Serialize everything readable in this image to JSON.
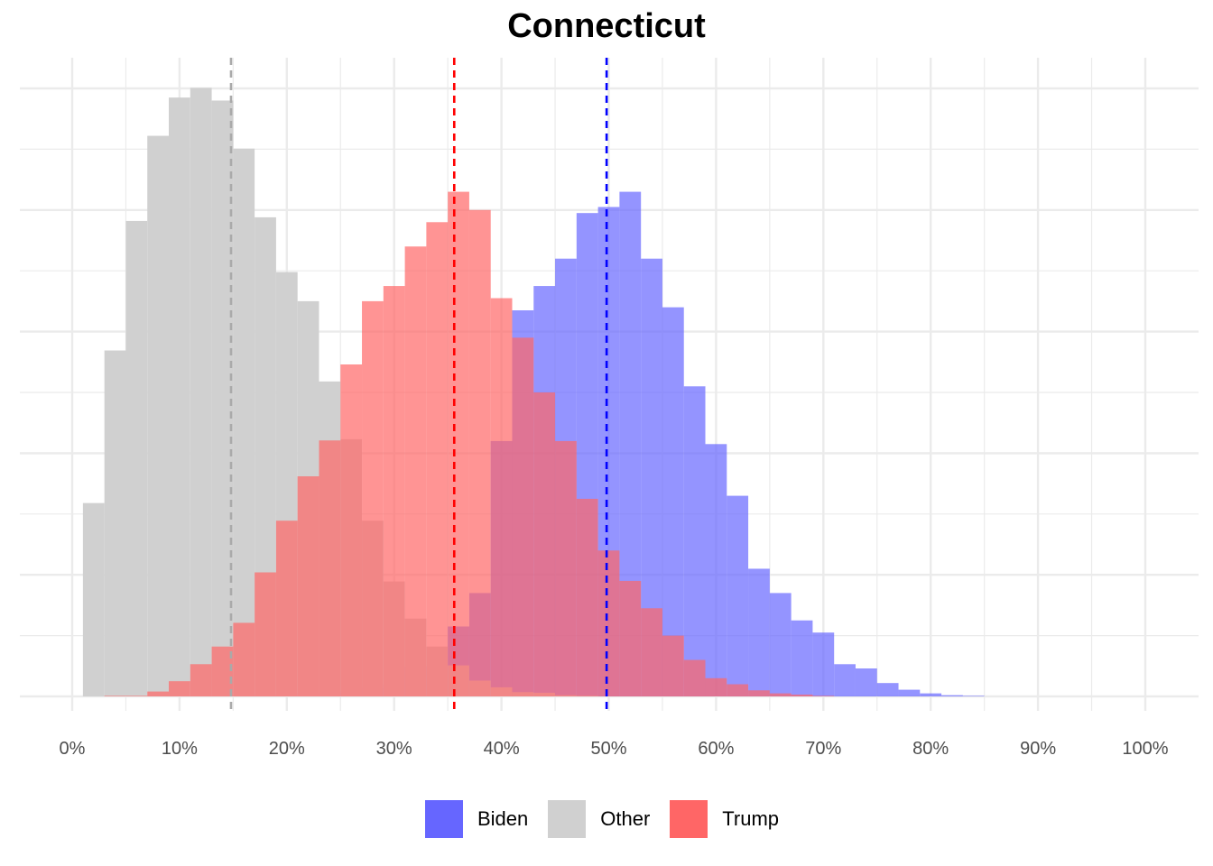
{
  "chart_data": {
    "type": "histogram",
    "title": "Connecticut",
    "xlabel": "",
    "ylabel": "",
    "x_tick_labels": [
      "0%",
      "10%",
      "20%",
      "30%",
      "40%",
      "50%",
      "60%",
      "70%",
      "80%",
      "90%",
      "100%"
    ],
    "xlim": [
      -0.05,
      1.05
    ],
    "ylim": [
      0,
      1050
    ],
    "grid": true,
    "legend_position": "bottom",
    "bin_width": 0.02,
    "series": [
      {
        "name": "Biden",
        "color": "#6666ff",
        "bins": [
          {
            "x": 0.12,
            "count": 1
          },
          {
            "x": 0.14,
            "count": 1
          },
          {
            "x": 0.16,
            "count": 1
          },
          {
            "x": 0.18,
            "count": 3
          },
          {
            "x": 0.2,
            "count": 3
          },
          {
            "x": 0.22,
            "count": 5
          },
          {
            "x": 0.24,
            "count": 6
          },
          {
            "x": 0.26,
            "count": 10
          },
          {
            "x": 0.28,
            "count": 14
          },
          {
            "x": 0.3,
            "count": 20
          },
          {
            "x": 0.32,
            "count": 50
          },
          {
            "x": 0.34,
            "count": 80
          },
          {
            "x": 0.36,
            "count": 115
          },
          {
            "x": 0.38,
            "count": 170
          },
          {
            "x": 0.4,
            "count": 420
          },
          {
            "x": 0.42,
            "count": 635
          },
          {
            "x": 0.44,
            "count": 675
          },
          {
            "x": 0.46,
            "count": 720
          },
          {
            "x": 0.48,
            "count": 795
          },
          {
            "x": 0.5,
            "count": 805
          },
          {
            "x": 0.52,
            "count": 830
          },
          {
            "x": 0.54,
            "count": 720
          },
          {
            "x": 0.56,
            "count": 640
          },
          {
            "x": 0.58,
            "count": 510
          },
          {
            "x": 0.6,
            "count": 415
          },
          {
            "x": 0.62,
            "count": 330
          },
          {
            "x": 0.64,
            "count": 210
          },
          {
            "x": 0.66,
            "count": 170
          },
          {
            "x": 0.68,
            "count": 125
          },
          {
            "x": 0.7,
            "count": 105
          },
          {
            "x": 0.72,
            "count": 53
          },
          {
            "x": 0.74,
            "count": 46
          },
          {
            "x": 0.76,
            "count": 22
          },
          {
            "x": 0.78,
            "count": 11
          },
          {
            "x": 0.8,
            "count": 5
          },
          {
            "x": 0.82,
            "count": 2
          },
          {
            "x": 0.84,
            "count": 1
          }
        ]
      },
      {
        "name": "Other",
        "color": "#d0d0d0",
        "bins": [
          {
            "x": 0.02,
            "count": 318
          },
          {
            "x": 0.04,
            "count": 569
          },
          {
            "x": 0.06,
            "count": 782
          },
          {
            "x": 0.08,
            "count": 922
          },
          {
            "x": 0.1,
            "count": 985
          },
          {
            "x": 0.12,
            "count": 1001
          },
          {
            "x": 0.14,
            "count": 980
          },
          {
            "x": 0.16,
            "count": 901
          },
          {
            "x": 0.18,
            "count": 788
          },
          {
            "x": 0.2,
            "count": 698
          },
          {
            "x": 0.22,
            "count": 650
          },
          {
            "x": 0.24,
            "count": 518
          },
          {
            "x": 0.26,
            "count": 423
          },
          {
            "x": 0.28,
            "count": 289
          },
          {
            "x": 0.3,
            "count": 189
          },
          {
            "x": 0.32,
            "count": 128
          },
          {
            "x": 0.34,
            "count": 82
          },
          {
            "x": 0.36,
            "count": 51
          },
          {
            "x": 0.38,
            "count": 26
          },
          {
            "x": 0.4,
            "count": 15
          },
          {
            "x": 0.42,
            "count": 7
          },
          {
            "x": 0.44,
            "count": 6
          },
          {
            "x": 0.46,
            "count": 2
          },
          {
            "x": 0.48,
            "count": 1
          }
        ]
      },
      {
        "name": "Trump",
        "color": "#ff6666",
        "bins": [
          {
            "x": 0.04,
            "count": 1
          },
          {
            "x": 0.06,
            "count": 1
          },
          {
            "x": 0.08,
            "count": 8
          },
          {
            "x": 0.1,
            "count": 25
          },
          {
            "x": 0.12,
            "count": 53
          },
          {
            "x": 0.14,
            "count": 82
          },
          {
            "x": 0.16,
            "count": 121
          },
          {
            "x": 0.18,
            "count": 204
          },
          {
            "x": 0.2,
            "count": 289
          },
          {
            "x": 0.22,
            "count": 362
          },
          {
            "x": 0.24,
            "count": 421
          },
          {
            "x": 0.26,
            "count": 546
          },
          {
            "x": 0.28,
            "count": 650
          },
          {
            "x": 0.3,
            "count": 675
          },
          {
            "x": 0.32,
            "count": 740
          },
          {
            "x": 0.34,
            "count": 780
          },
          {
            "x": 0.36,
            "count": 830
          },
          {
            "x": 0.38,
            "count": 800
          },
          {
            "x": 0.4,
            "count": 655
          },
          {
            "x": 0.42,
            "count": 590
          },
          {
            "x": 0.44,
            "count": 500
          },
          {
            "x": 0.46,
            "count": 420
          },
          {
            "x": 0.48,
            "count": 325
          },
          {
            "x": 0.5,
            "count": 240
          },
          {
            "x": 0.52,
            "count": 190
          },
          {
            "x": 0.54,
            "count": 145
          },
          {
            "x": 0.56,
            "count": 100
          },
          {
            "x": 0.58,
            "count": 60
          },
          {
            "x": 0.6,
            "count": 30
          },
          {
            "x": 0.62,
            "count": 20
          },
          {
            "x": 0.64,
            "count": 10
          },
          {
            "x": 0.66,
            "count": 5
          },
          {
            "x": 0.68,
            "count": 3
          },
          {
            "x": 0.7,
            "count": 1
          }
        ]
      }
    ],
    "reference_lines": [
      {
        "series": "Other",
        "x": 0.148,
        "color": "#aaaaaa",
        "style": "dashed"
      },
      {
        "series": "Trump",
        "x": 0.356,
        "color": "#ff0000",
        "style": "dashed"
      },
      {
        "series": "Biden",
        "x": 0.498,
        "color": "#0000ff",
        "style": "dashed"
      }
    ]
  }
}
